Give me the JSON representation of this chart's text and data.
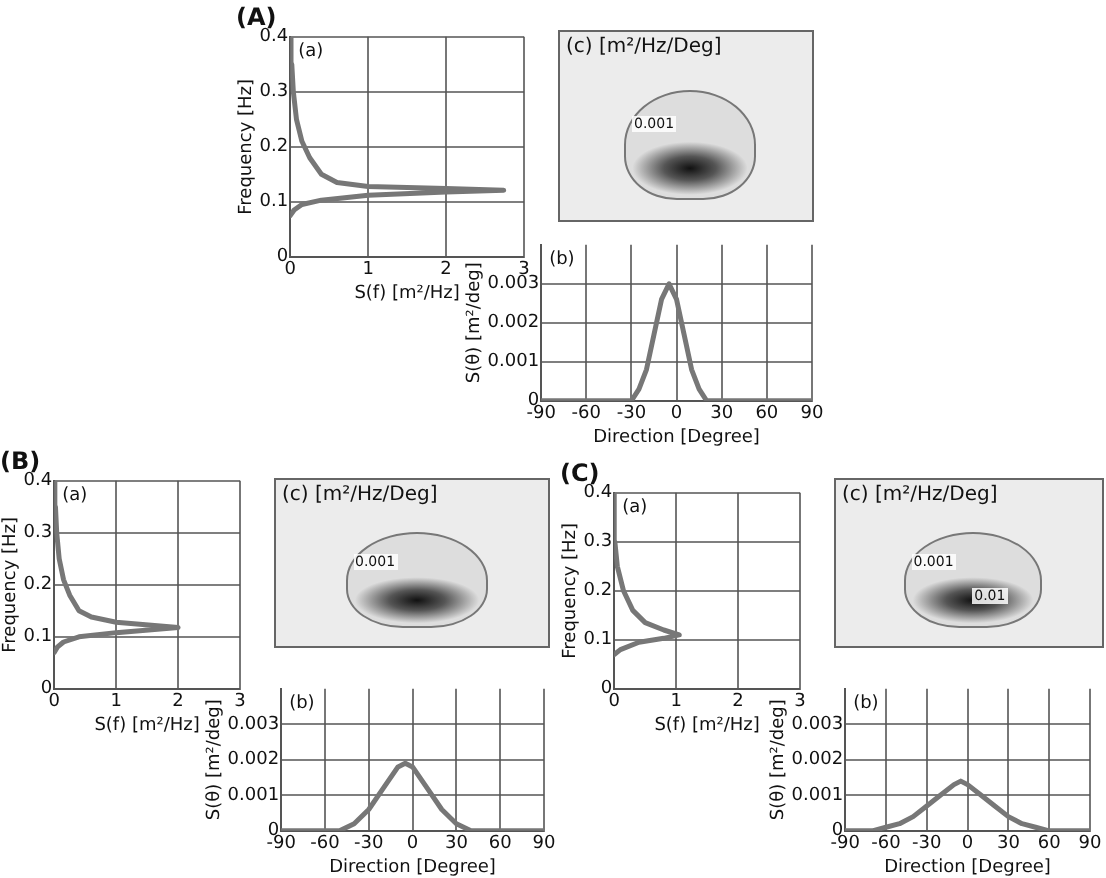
{
  "chart_data": [
    {
      "type": "line",
      "title": "(A)",
      "xlabel": "S(f) [m²/Hz]",
      "ylabel": "Frequency [Hz]",
      "annotations": [
        "(a)"
      ],
      "series": [
        {
          "color": "#777777",
          "x": [
            0,
            0.05,
            0.15,
            0.4,
            1.0,
            2.0,
            2.74,
            2.0,
            1.0,
            0.6,
            0.4,
            0.25,
            0.15,
            0.08,
            0.04,
            0.02,
            0.01
          ],
          "values": [
            0.075,
            0.085,
            0.095,
            0.103,
            0.112,
            0.118,
            0.121,
            0.124,
            0.128,
            0.135,
            0.15,
            0.18,
            0.21,
            0.25,
            0.3,
            0.35,
            0.4
          ]
        }
      ],
      "xlim": [
        0,
        3
      ],
      "xticks": [
        0,
        1,
        2,
        3
      ],
      "ylim": [
        0,
        0.4
      ],
      "yticks": [
        0,
        0.1,
        0.2,
        0.3,
        0.4
      ],
      "grid": true
    },
    {
      "type": "other",
      "title": "(c) [m²/Hz/Deg]",
      "annotations": [
        "0.001"
      ]
    },
    {
      "type": "line",
      "xlabel": "Direction [Degree]",
      "ylabel": "S(θ) [m²/deg]",
      "annotations": [
        "(b)"
      ],
      "series": [
        {
          "color": "#777777",
          "x": [
            -90,
            -40,
            -35,
            -30,
            -25,
            -20,
            -15,
            -10,
            -5,
            0,
            5,
            10,
            15,
            20,
            25,
            30,
            90
          ],
          "values": [
            0,
            0,
            0,
            0,
            0.0003,
            0.0008,
            0.0017,
            0.0026,
            0.003,
            0.0026,
            0.0017,
            0.0008,
            0.0003,
            0,
            0,
            0,
            0
          ]
        }
      ],
      "xlim": [
        -90,
        90
      ],
      "xticks": [
        -90,
        -60,
        -30,
        0,
        30,
        60,
        90
      ],
      "ylim": [
        0,
        0.004
      ],
      "yticks": [
        0,
        0.001,
        0.002,
        0.003
      ],
      "grid": true
    },
    {
      "type": "line",
      "title": "(B)",
      "xlabel": "S(f) [m²/Hz]",
      "ylabel": "Frequency [Hz]",
      "annotations": [
        "(a)"
      ],
      "series": [
        {
          "color": "#777777",
          "x": [
            0,
            0.05,
            0.15,
            0.4,
            1.0,
            2.0,
            1.0,
            0.6,
            0.4,
            0.25,
            0.15,
            0.08,
            0.04,
            0.02,
            0.01
          ],
          "values": [
            0.07,
            0.08,
            0.09,
            0.1,
            0.108,
            0.118,
            0.128,
            0.138,
            0.15,
            0.18,
            0.21,
            0.25,
            0.3,
            0.35,
            0.4
          ]
        }
      ],
      "xlim": [
        0,
        3
      ],
      "xticks": [
        0,
        1,
        2,
        3
      ],
      "ylim": [
        0,
        0.4
      ],
      "yticks": [
        0,
        0.1,
        0.2,
        0.3,
        0.4
      ],
      "grid": true
    },
    {
      "type": "other",
      "title": "(c) [m²/Hz/Deg]",
      "annotations": [
        "0.001"
      ]
    },
    {
      "type": "line",
      "xlabel": "Direction [Degree]",
      "ylabel": "S(θ) [m²/deg]",
      "annotations": [
        "(b)"
      ],
      "series": [
        {
          "color": "#777777",
          "x": [
            -90,
            -60,
            -50,
            -40,
            -30,
            -20,
            -10,
            -5,
            0,
            10,
            20,
            30,
            40,
            50,
            90
          ],
          "values": [
            0,
            0,
            0,
            0.0002,
            0.0006,
            0.0012,
            0.0018,
            0.0019,
            0.0018,
            0.0012,
            0.0006,
            0.0002,
            0,
            0,
            0
          ]
        }
      ],
      "xlim": [
        -90,
        90
      ],
      "xticks": [
        -90,
        -60,
        -30,
        0,
        30,
        60,
        90
      ],
      "ylim": [
        0,
        0.004
      ],
      "yticks": [
        0,
        0.001,
        0.002,
        0.003
      ],
      "grid": true
    },
    {
      "type": "line",
      "title": "(C)",
      "xlabel": "S(f) [m²/Hz]",
      "ylabel": "Frequency [Hz]",
      "annotations": [
        "(a)"
      ],
      "series": [
        {
          "color": "#777777",
          "x": [
            0,
            0.1,
            0.4,
            0.8,
            1.05,
            0.8,
            0.5,
            0.3,
            0.15,
            0.05,
            0.01,
            0
          ],
          "values": [
            0.07,
            0.08,
            0.095,
            0.103,
            0.11,
            0.12,
            0.135,
            0.16,
            0.2,
            0.25,
            0.3,
            0.4
          ]
        }
      ],
      "xlim": [
        0,
        3
      ],
      "xticks": [
        0,
        1,
        2,
        3
      ],
      "ylim": [
        0,
        0.4
      ],
      "yticks": [
        0,
        0.1,
        0.2,
        0.3,
        0.4
      ],
      "grid": true
    },
    {
      "type": "other",
      "title": "(c) [m²/Hz/Deg]",
      "annotations": [
        "0.001",
        "0.01"
      ]
    },
    {
      "type": "line",
      "xlabel": "Direction [Degree]",
      "ylabel": "S(θ) [m²/deg]",
      "annotations": [
        "(b)"
      ],
      "series": [
        {
          "color": "#777777",
          "x": [
            -90,
            -80,
            -70,
            -60,
            -50,
            -40,
            -30,
            -20,
            -10,
            -5,
            0,
            10,
            20,
            30,
            40,
            50,
            60,
            70,
            90
          ],
          "values": [
            0,
            0,
            0,
            0.0001,
            0.0002,
            0.0004,
            0.0007,
            0.001,
            0.0013,
            0.0014,
            0.0013,
            0.001,
            0.0007,
            0.0004,
            0.0002,
            0.0001,
            0,
            0,
            0
          ]
        }
      ],
      "xlim": [
        -90,
        90
      ],
      "xticks": [
        -90,
        -60,
        -30,
        0,
        30,
        60,
        90
      ],
      "ylim": [
        0,
        0.004
      ],
      "yticks": [
        0,
        0.001,
        0.002,
        0.003
      ],
      "grid": true
    }
  ]
}
